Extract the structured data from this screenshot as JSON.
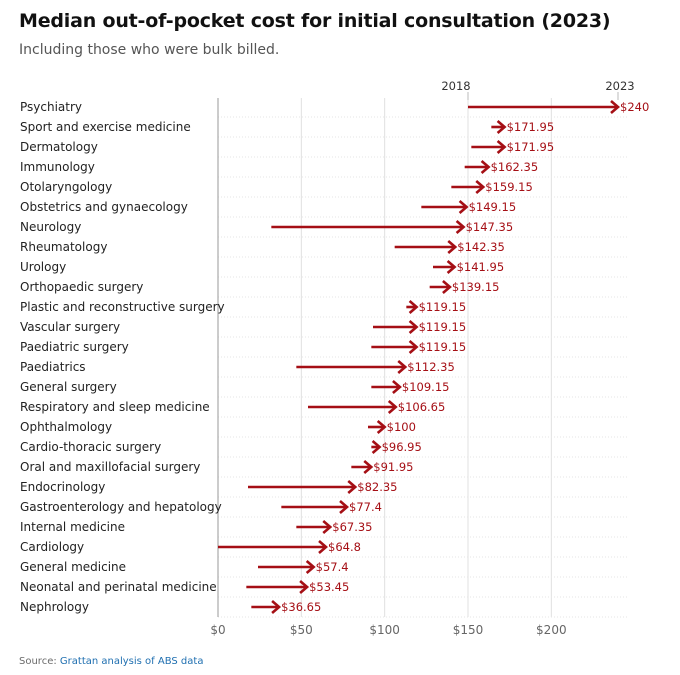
{
  "header": {
    "title": "Median out-of-pocket cost for initial consultation (2023)",
    "subtitle": "Including those who were bulk billed."
  },
  "footer": {
    "source_prefix": "Source: ",
    "source_link": "Grattan analysis of ABS data"
  },
  "colors": {
    "arrow": "#a50f15",
    "grid": "#e0e0e0",
    "axis": "#999999"
  },
  "chart_data": {
    "type": "arrow",
    "title": "Median out-of-pocket cost for initial consultation (2023)",
    "subtitle": "Including those who were bulk billed.",
    "legend": {
      "start_label": "2018",
      "end_label": "2023"
    },
    "x_ticks": [
      0,
      50,
      100,
      150,
      200
    ],
    "x_tick_labels": [
      "$0",
      "$50",
      "$100",
      "$150",
      "$200"
    ],
    "xlim": [
      0,
      240
    ],
    "categories": [
      "Psychiatry",
      "Sport and exercise medicine",
      "Dermatology",
      "Immunology",
      "Otolaryngology",
      "Obstetrics and gynaecology",
      "Neurology",
      "Rheumatology",
      "Urology",
      "Orthopaedic surgery",
      "Plastic and reconstructive surgery",
      "Vascular surgery",
      "Paediatric surgery",
      "Paediatrics",
      "General surgery",
      "Respiratory and sleep medicine",
      "Ophthalmology",
      "Cardio-thoracic surgery",
      "Oral and maxillofacial surgery",
      "Endocrinology",
      "Gastroenterology and hepatology",
      "Internal medicine",
      "Cardiology",
      "General medicine",
      "Neonatal and perinatal medicine",
      "Nephrology"
    ],
    "series": [
      {
        "name": "2018",
        "values": [
          150,
          164,
          152,
          148,
          140,
          122,
          32,
          106,
          129,
          127,
          113,
          93,
          92,
          47,
          92,
          54,
          90,
          92,
          80,
          18,
          38,
          47,
          0,
          24,
          17,
          20
        ]
      },
      {
        "name": "2023",
        "values": [
          240,
          171.95,
          171.95,
          162.35,
          159.15,
          149.15,
          147.35,
          142.35,
          141.95,
          139.15,
          119.15,
          119.15,
          119.15,
          112.35,
          109.15,
          106.65,
          100,
          96.95,
          91.95,
          82.35,
          77.4,
          67.35,
          64.8,
          57.4,
          53.45,
          36.65
        ]
      }
    ],
    "value_labels": [
      "$240",
      "$171.95",
      "$171.95",
      "$162.35",
      "$159.15",
      "$149.15",
      "$147.35",
      "$142.35",
      "$141.95",
      "$139.15",
      "$119.15",
      "$119.15",
      "$119.15",
      "$112.35",
      "$109.15",
      "$106.65",
      "$100",
      "$96.95",
      "$91.95",
      "$82.35",
      "$77.4",
      "$67.35",
      "$64.8",
      "$57.4",
      "$53.45",
      "$36.65"
    ]
  }
}
